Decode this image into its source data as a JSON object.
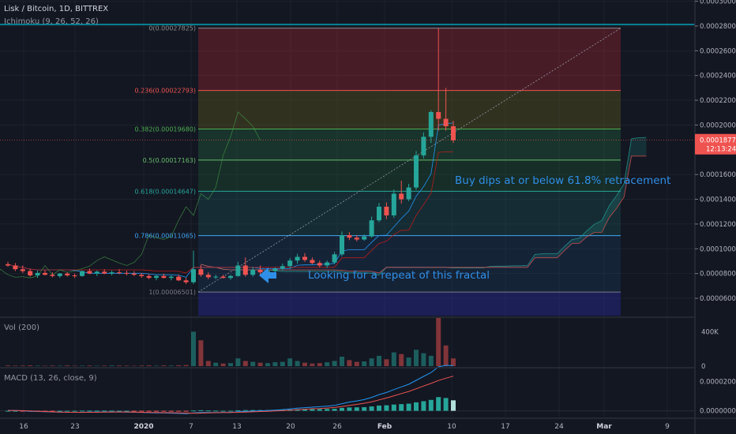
{
  "header": {
    "symbol_title": "Lisk / Bitcoin, 1D, BITTREX",
    "ichimoku_label": "Ichimoku (9, 26, 52, 26)",
    "volume_label": "Vol (200)",
    "macd_label": "MACD (13, 26, close, 9)"
  },
  "price_axis": {
    "ticks": [
      "0.00030000",
      "0.00028000",
      "0.00026000",
      "0.00024000",
      "0.00022000",
      "0.00020000",
      "0.00016000",
      "0.00014000",
      "0.00012000",
      "0.00010000",
      "0.00008000",
      "0.00006000"
    ],
    "last_price": "0.00018770",
    "countdown": "12:13:24"
  },
  "volume_axis": {
    "ticks": [
      "400K",
      "0"
    ]
  },
  "macd_axis": {
    "ticks": [
      "0.00002000",
      "0.00000000"
    ]
  },
  "time_axis": {
    "labels": [
      "16",
      "23",
      "2020",
      "7",
      "13",
      "20",
      "26",
      "Feb",
      "10",
      "17",
      "24",
      "Mar",
      "9"
    ]
  },
  "fib_levels": [
    {
      "label": "0(0.00027825)",
      "price": 0.00027825
    },
    {
      "label": "0.236(0.00022793)",
      "price": 0.00022793
    },
    {
      "label": "0.382(0.00019680)",
      "price": 0.0001968
    },
    {
      "label": "0.5(0.00017163)",
      "price": 0.00017163
    },
    {
      "label": "0.618(0.00014647)",
      "price": 0.00014647
    },
    {
      "label": "0.786(0.00011065)",
      "price": 0.00011065
    },
    {
      "label": "1(0.00006501)",
      "price": 6.501e-05
    }
  ],
  "annotations": {
    "buy_dips": "Buy dips at or below 61.8% retracement",
    "fractal": "Looking for a repeat of this fractal"
  },
  "colors": {
    "background": "#131722",
    "up": "#26a69a",
    "down": "#ef5350",
    "text": "#b2b5be",
    "annotation": "#2f8fe8",
    "last_price_tag": "#ef5350",
    "top_line": "#00bcd4"
  },
  "chart_data": {
    "type": "candlestick",
    "title": "Lisk / Bitcoin, 1D, BITTREX",
    "ylim": [
      4.6e-05,
      0.000301
    ],
    "candles": [
      {
        "o": 8.75e-05,
        "h": 8.95e-05,
        "l": 8.55e-05,
        "c": 8.65e-05
      },
      {
        "o": 8.65e-05,
        "h": 8.85e-05,
        "l": 8.2e-05,
        "c": 8.35e-05
      },
      {
        "o": 8.35e-05,
        "h": 8.65e-05,
        "l": 8.05e-05,
        "c": 8.2e-05
      },
      {
        "o": 8.2e-05,
        "h": 8.4e-05,
        "l": 7.75e-05,
        "c": 7.85e-05
      },
      {
        "o": 7.85e-05,
        "h": 8.25e-05,
        "l": 7.65e-05,
        "c": 8.05e-05
      },
      {
        "o": 8.05e-05,
        "h": 8.3e-05,
        "l": 7.85e-05,
        "c": 7.9e-05
      },
      {
        "o": 7.9e-05,
        "h": 8.1e-05,
        "l": 7.7e-05,
        "c": 7.8e-05
      },
      {
        "o": 7.8e-05,
        "h": 8.05e-05,
        "l": 7.65e-05,
        "c": 8e-05
      },
      {
        "o": 8e-05,
        "h": 8.1e-05,
        "l": 7.75e-05,
        "c": 7.85e-05
      },
      {
        "o": 7.85e-05,
        "h": 8e-05,
        "l": 7.65e-05,
        "c": 7.8e-05
      },
      {
        "o": 7.8e-05,
        "h": 8.25e-05,
        "l": 7.75e-05,
        "c": 8.2e-05
      },
      {
        "o": 8.2e-05,
        "h": 8.4e-05,
        "l": 7.95e-05,
        "c": 8e-05
      },
      {
        "o": 8e-05,
        "h": 8.25e-05,
        "l": 7.8e-05,
        "c": 8.15e-05
      },
      {
        "o": 8.15e-05,
        "h": 8.35e-05,
        "l": 7.95e-05,
        "c": 8e-05
      },
      {
        "o": 8e-05,
        "h": 8.25e-05,
        "l": 7.85e-05,
        "c": 8.1e-05
      },
      {
        "o": 8.1e-05,
        "h": 8.35e-05,
        "l": 7.95e-05,
        "c": 8.05e-05
      },
      {
        "o": 8.05e-05,
        "h": 8.25e-05,
        "l": 7.85e-05,
        "c": 8e-05
      },
      {
        "o": 8e-05,
        "h": 8.2e-05,
        "l": 7.8e-05,
        "c": 7.9e-05
      },
      {
        "o": 7.9e-05,
        "h": 8.05e-05,
        "l": 7.65e-05,
        "c": 7.8e-05
      },
      {
        "o": 7.8e-05,
        "h": 7.95e-05,
        "l": 7.55e-05,
        "c": 7.65e-05
      },
      {
        "o": 7.65e-05,
        "h": 7.9e-05,
        "l": 7.45e-05,
        "c": 7.8e-05
      },
      {
        "o": 7.8e-05,
        "h": 8e-05,
        "l": 7.6e-05,
        "c": 7.65e-05
      },
      {
        "o": 7.65e-05,
        "h": 7.85e-05,
        "l": 7.45e-05,
        "c": 7.75e-05
      },
      {
        "o": 7.75e-05,
        "h": 7.9e-05,
        "l": 7.4e-05,
        "c": 7.45e-05
      },
      {
        "o": 7.45e-05,
        "h": 7.65e-05,
        "l": 7.15e-05,
        "c": 7.3e-05
      },
      {
        "o": 7.3e-05,
        "h": 9.85e-05,
        "l": 7.15e-05,
        "c": 8.35e-05
      },
      {
        "o": 8.35e-05,
        "h": 8.7e-05,
        "l": 7.75e-05,
        "c": 7.9e-05
      },
      {
        "o": 7.9e-05,
        "h": 8.1e-05,
        "l": 7.55e-05,
        "c": 7.7e-05
      },
      {
        "o": 7.7e-05,
        "h": 7.9e-05,
        "l": 7.55e-05,
        "c": 7.75e-05
      },
      {
        "o": 7.75e-05,
        "h": 7.9e-05,
        "l": 7.6e-05,
        "c": 7.65e-05
      },
      {
        "o": 7.65e-05,
        "h": 7.9e-05,
        "l": 7.5e-05,
        "c": 7.8e-05
      },
      {
        "o": 7.8e-05,
        "h": 8.95e-05,
        "l": 7.75e-05,
        "c": 8.65e-05
      },
      {
        "o": 8.65e-05,
        "h": 9.3e-05,
        "l": 7.75e-05,
        "c": 7.9e-05
      },
      {
        "o": 7.9e-05,
        "h": 8.55e-05,
        "l": 7.75e-05,
        "c": 8.3e-05
      },
      {
        "o": 8.3e-05,
        "h": 8.65e-05,
        "l": 7.85e-05,
        "c": 8.1e-05
      },
      {
        "o": 8.1e-05,
        "h": 8.35e-05,
        "l": 7.85e-05,
        "c": 8.2e-05
      },
      {
        "o": 8.2e-05,
        "h": 8.5e-05,
        "l": 7.9e-05,
        "c": 8.4e-05
      },
      {
        "o": 8.4e-05,
        "h": 8.8e-05,
        "l": 8.25e-05,
        "c": 8.6e-05
      },
      {
        "o": 8.6e-05,
        "h": 9.25e-05,
        "l": 8.45e-05,
        "c": 9.05e-05
      },
      {
        "o": 9.05e-05,
        "h": 9.6e-05,
        "l": 8.8e-05,
        "c": 9.35e-05
      },
      {
        "o": 9.35e-05,
        "h": 9.65e-05,
        "l": 8.95e-05,
        "c": 9.1e-05
      },
      {
        "o": 9.1e-05,
        "h": 9.3e-05,
        "l": 8.75e-05,
        "c": 8.85e-05
      },
      {
        "o": 8.85e-05,
        "h": 9.05e-05,
        "l": 8.5e-05,
        "c": 8.65e-05
      },
      {
        "o": 8.65e-05,
        "h": 9.05e-05,
        "l": 8.45e-05,
        "c": 8.9e-05
      },
      {
        "o": 8.9e-05,
        "h": 9.75e-05,
        "l": 8.75e-05,
        "c": 9.55e-05
      },
      {
        "o": 9.55e-05,
        "h": 0.000114,
        "l": 9.4e-05,
        "c": 0.000111
      },
      {
        "o": 0.000111,
        "h": 0.0001135,
        "l": 0.000107,
        "c": 0.000109
      },
      {
        "o": 0.000109,
        "h": 0.000111,
        "l": 0.000106,
        "c": 0.0001075
      },
      {
        "o": 0.0001075,
        "h": 0.0001115,
        "l": 0.0001065,
        "c": 0.00011
      },
      {
        "o": 0.00011,
        "h": 0.000126,
        "l": 0.000109,
        "c": 0.000123
      },
      {
        "o": 0.000123,
        "h": 0.000137,
        "l": 0.0001215,
        "c": 0.000134
      },
      {
        "o": 0.000134,
        "h": 0.0001375,
        "l": 0.000124,
        "c": 0.000127
      },
      {
        "o": 0.000127,
        "h": 0.000148,
        "l": 0.000125,
        "c": 0.0001445
      },
      {
        "o": 0.0001445,
        "h": 0.000155,
        "l": 0.0001365,
        "c": 0.00014
      },
      {
        "o": 0.00014,
        "h": 0.0001525,
        "l": 0.0001385,
        "c": 0.0001495
      },
      {
        "o": 0.0001495,
        "h": 0.000179,
        "l": 0.0001475,
        "c": 0.0001755
      },
      {
        "o": 0.0001755,
        "h": 0.000194,
        "l": 0.000173,
        "c": 0.0001905
      },
      {
        "o": 0.0001905,
        "h": 0.000212,
        "l": 0.0001855,
        "c": 0.0002105
      },
      {
        "o": 0.0002105,
        "h": 0.00027825,
        "l": 0.0001955,
        "c": 0.000205
      },
      {
        "o": 0.000205,
        "h": 0.00023,
        "l": 0.0001955,
        "c": 0.000199
      },
      {
        "o": 0.000199,
        "h": 0.0002035,
        "l": 0.0001855,
        "c": 0.0001877
      }
    ],
    "volume_ylim": [
      0,
      550000
    ],
    "volume": [
      8000,
      6000,
      7000,
      9000,
      6000,
      5000,
      7000,
      6000,
      8000,
      5000,
      6000,
      7000,
      5000,
      6000,
      8000,
      7000,
      6000,
      5000,
      7000,
      9000,
      6000,
      8000,
      7000,
      10000,
      12000,
      400000,
      300000,
      60000,
      40000,
      30000,
      35000,
      90000,
      60000,
      50000,
      40000,
      35000,
      45000,
      50000,
      90000,
      60000,
      40000,
      30000,
      35000,
      45000,
      60000,
      110000,
      70000,
      50000,
      55000,
      90000,
      120000,
      80000,
      160000,
      140000,
      100000,
      190000,
      150000,
      120000,
      560000,
      240000,
      90000
    ],
    "macd_ylim": [
      -4e-06,
      2.85e-05
    ],
    "macd_hist": [
      0,
      0,
      -1e-07,
      -2e-07,
      -2e-07,
      -1e-07,
      -1e-07,
      0,
      0,
      0,
      1e-07,
      1e-07,
      1e-07,
      1e-07,
      1e-07,
      0,
      0,
      -1e-07,
      -1e-07,
      -2e-07,
      -2e-07,
      -2e-07,
      -3e-07,
      -4e-07,
      -5e-07,
      2e-07,
      4e-07,
      2e-07,
      1e-07,
      0,
      0,
      4e-07,
      5e-07,
      5e-07,
      5e-07,
      5e-07,
      6e-07,
      7e-07,
      9e-07,
      1e-06,
      1.1e-06,
      1.1e-06,
      1.2e-06,
      1.3e-06,
      1.4e-06,
      2e-06,
      2.3e-06,
      2.4e-06,
      2.5e-06,
      3e-06,
      3.6e-06,
      3.8e-06,
      4.3e-06,
      4.6e-06,
      4.9e-06,
      5.8e-06,
      6.6e-06,
      7.5e-06,
      9.4e-06,
      8.8e-06,
      7.2e-06
    ],
    "macd_line": [
      3e-07,
      2e-07,
      0,
      -3e-07,
      -5e-07,
      -6e-07,
      -8e-07,
      -9e-07,
      -1e-06,
      -1e-06,
      -1e-06,
      -9e-07,
      -9e-07,
      -8e-07,
      -8e-07,
      -8e-07,
      -9e-07,
      -1e-06,
      -1.1e-06,
      -1.3e-06,
      -1.4e-06,
      -1.5e-06,
      -1.6e-06,
      -1.8e-06,
      -2e-06,
      -1.4e-06,
      -1.2e-06,
      -1.2e-06,
      -1.2e-06,
      -1.2e-06,
      -1.2e-06,
      -6e-07,
      -4e-07,
      -2e-07,
      0,
      2e-07,
      5e-07,
      8e-07,
      1.3e-06,
      1.8e-06,
      2.2e-06,
      2.5e-06,
      2.8e-06,
      3.2e-06,
      3.7e-06,
      4.9e-06,
      6e-06,
      6.8e-06,
      7.7e-06,
      9.2e-06,
      1.11e-05,
      1.26e-05,
      1.46e-05,
      1.64e-05,
      1.82e-05,
      2.09e-05,
      2.36e-05,
      2.63e-05,
      3.02e-05,
      3.12e-05,
      3.1e-05
    ],
    "signal_line": [
      3e-07,
      2e-07,
      1e-07,
      -1e-07,
      -3e-07,
      -5e-07,
      -7e-07,
      -9e-07,
      -1e-06,
      -1e-06,
      -1.1e-06,
      -1e-06,
      -1e-06,
      -9e-07,
      -9e-07,
      -8e-07,
      -8e-07,
      -9e-07,
      -1e-06,
      -1.1e-06,
      -1.2e-06,
      -1.3e-06,
      -1.3e-06,
      -1.4e-06,
      -1.5e-06,
      -1.6e-06,
      -1.6e-06,
      -1.4e-06,
      -1.3e-06,
      -1.2e-06,
      -1.2e-06,
      -1e-06,
      -9e-07,
      -7e-07,
      -5e-07,
      -3e-07,
      -1e-07,
      1e-07,
      4e-07,
      8e-07,
      1.1e-06,
      1.4e-06,
      1.6e-06,
      1.9e-06,
      2.3e-06,
      2.9e-06,
      3.7e-06,
      4.4e-06,
      5.2e-06,
      6.2e-06,
      7.5e-06,
      8.8e-06,
      1.03e-05,
      1.18e-05,
      1.33e-05,
      1.51e-05,
      1.7e-05,
      1.88e-05,
      2.08e-05,
      2.24e-05,
      2.38e-05
    ]
  }
}
